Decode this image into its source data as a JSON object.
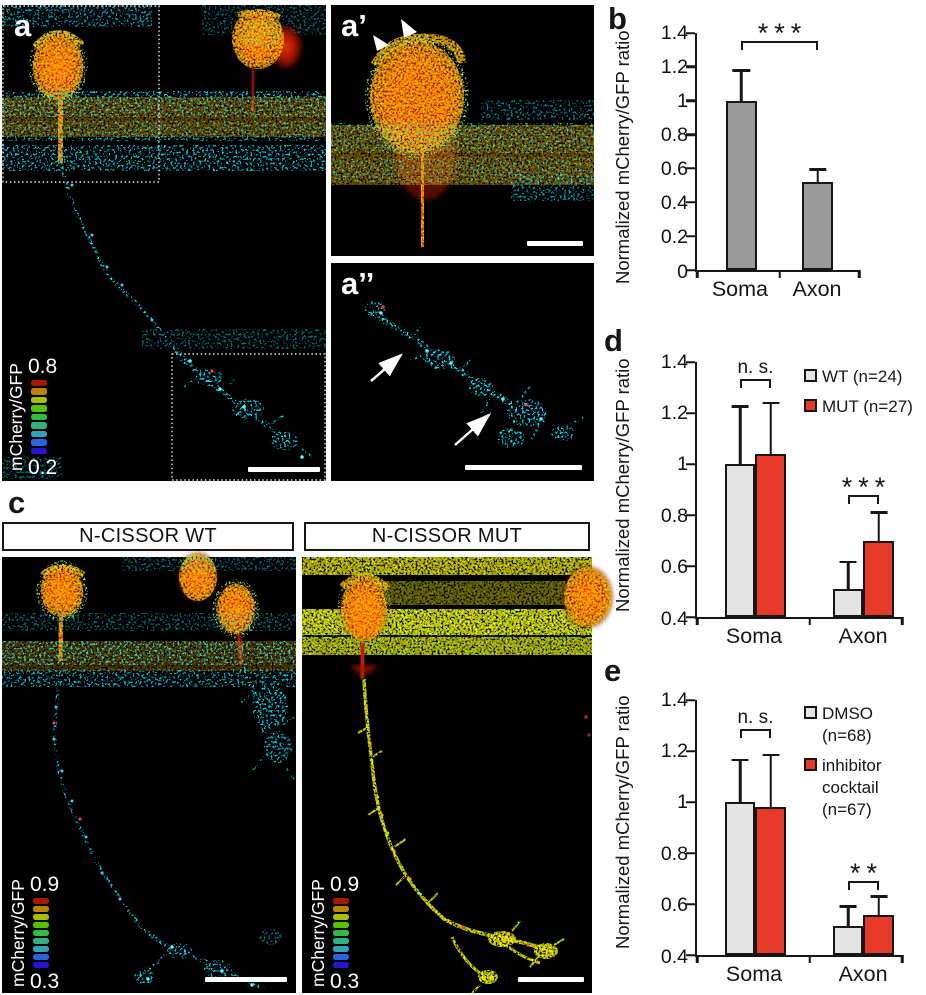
{
  "figure": {
    "panel_labels": {
      "a": "a",
      "a_prime": "a’",
      "a_double_prime": "a’’",
      "b": "b",
      "c": "c",
      "d": "d",
      "e": "e"
    },
    "c_headers": {
      "wt": "N-CISSOR WT",
      "mut": "N-CISSOR MUT"
    },
    "lut_colors": [
      "#a81a00",
      "#bd8400",
      "#a6c000",
      "#52c300",
      "#2fbe3a",
      "#2db47e",
      "#2aa6b4",
      "#2b62e0",
      "#2a14d4"
    ],
    "colorbars": {
      "a": {
        "label": "mCherry/GFP",
        "max": "0.8",
        "min": "0.2"
      },
      "wt": {
        "label": "mCherry/GFP",
        "max": "0.9",
        "min": "0.3"
      },
      "mut": {
        "label": "mCherry/GFP",
        "max": "0.9",
        "min": "0.3"
      }
    },
    "annotations": {
      "a_prime_arrowheads": 2,
      "a_double_prime_arrows": 2
    },
    "colors": {
      "bar_gray": "#9b9b9b",
      "bar_light_gray": "#e4e4e4",
      "bar_red": "#e83a28",
      "axis": "#161616"
    }
  },
  "chart_data": [
    {
      "id": "b",
      "type": "bar",
      "title": "",
      "xlabel": "",
      "ylabel": "Normalized mCherry/GFP ratio",
      "ylim": [
        0,
        1.4
      ],
      "yticks": [
        "0",
        "0.2",
        "0.4",
        "0.6",
        "0.8",
        "1",
        "1.2",
        "1.4"
      ],
      "grid": false,
      "categories": [
        "Soma",
        "Axon"
      ],
      "series": [
        {
          "name": "",
          "color": "#9b9b9b",
          "values": [
            1.0,
            0.52
          ],
          "errors": [
            0.17,
            0.065
          ]
        }
      ],
      "significance": [
        {
          "groups": [
            0,
            1
          ],
          "y": 1.3,
          "label": "***"
        }
      ],
      "legend_position": "none"
    },
    {
      "id": "d",
      "type": "bar",
      "title": "",
      "xlabel": "",
      "ylabel": "Normalized mCherry/GFP ratio",
      "ylim": [
        0.4,
        1.4
      ],
      "yticks": [
        "0.4",
        "0.6",
        "0.8",
        "1",
        "1.2",
        "1.4"
      ],
      "grid": false,
      "categories": [
        "Soma",
        "Axon"
      ],
      "series": [
        {
          "name": "WT (n=24)",
          "color": "#e4e4e4",
          "values": [
            1.0,
            0.51
          ],
          "errors": [
            0.22,
            0.1
          ]
        },
        {
          "name": "MUT (n=27)",
          "color": "#e83a28",
          "values": [
            1.04,
            0.7
          ],
          "errors": [
            0.195,
            0.105
          ]
        }
      ],
      "significance": [
        {
          "group": 0,
          "y": 1.3,
          "label": "n. s."
        },
        {
          "group": 1,
          "y": 0.845,
          "label": "***"
        }
      ],
      "legend_position": "upper-right"
    },
    {
      "id": "e",
      "type": "bar",
      "title": "",
      "xlabel": "",
      "ylabel": "Normalized mCherry/GFP ratio",
      "ylim": [
        0.4,
        1.4
      ],
      "yticks": [
        "0.4",
        "0.6",
        "0.8",
        "1",
        "1.2",
        "1.4"
      ],
      "grid": false,
      "categories": [
        "Soma",
        "Axon"
      ],
      "series": [
        {
          "name": "DMSO (n=68)",
          "color": "#e4e4e4",
          "values": [
            1.0,
            0.515
          ],
          "errors": [
            0.16,
            0.07
          ]
        },
        {
          "name": "inhibitor cocktail (n=67)",
          "color": "#e83a28",
          "values": [
            0.98,
            0.555
          ],
          "errors": [
            0.2,
            0.07
          ]
        }
      ],
      "significance": [
        {
          "group": 0,
          "y": 1.25,
          "label": "n. s."
        },
        {
          "group": 1,
          "y": 0.655,
          "label": "**"
        }
      ],
      "legend_position": "upper-right"
    }
  ]
}
